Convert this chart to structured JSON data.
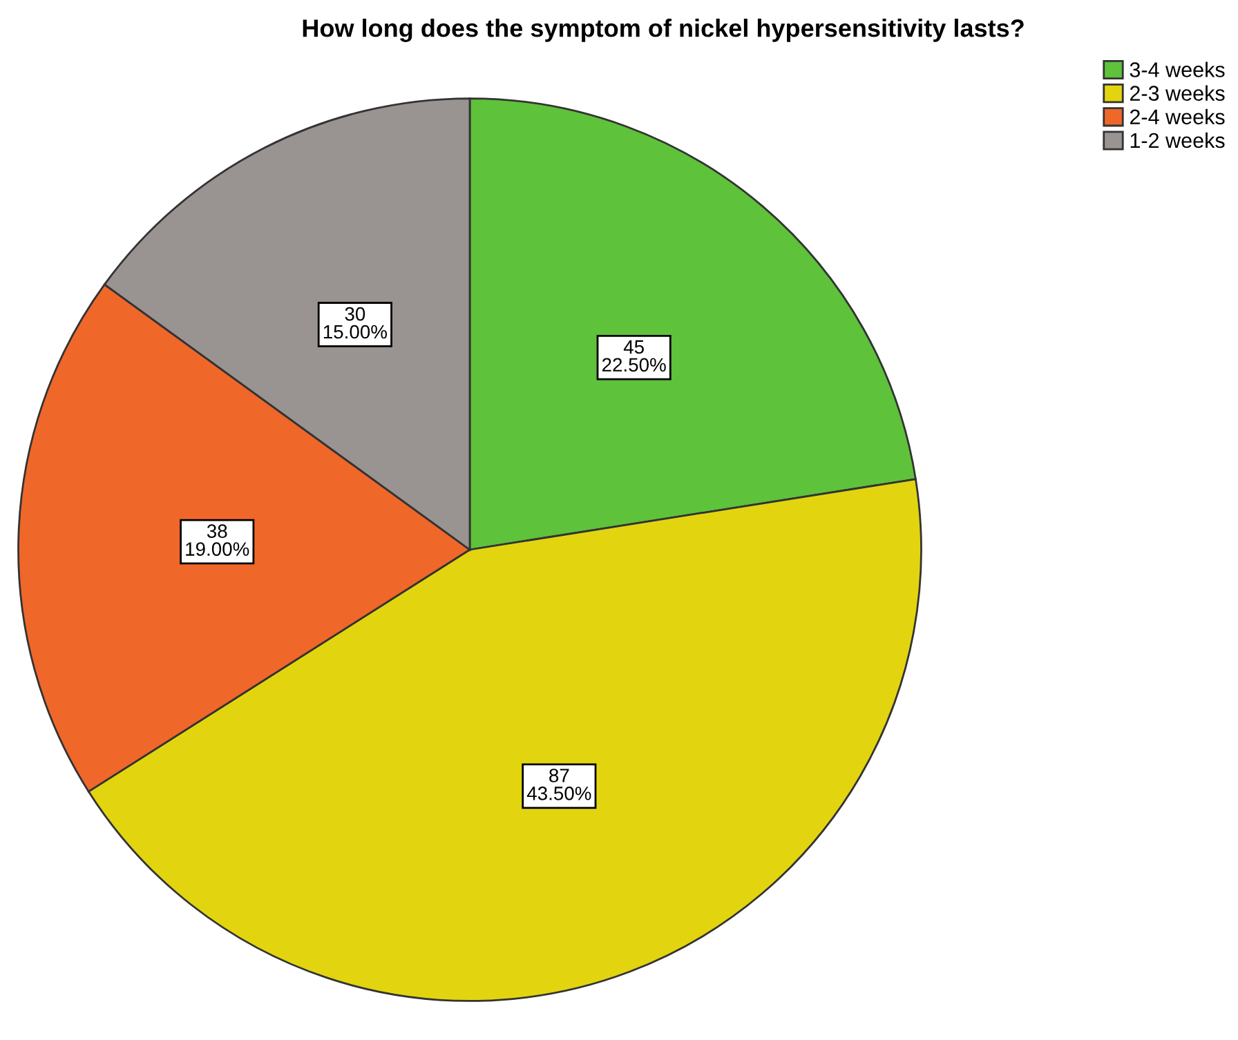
{
  "chart_data": {
    "type": "pie",
    "title": "How long does the symptom of nickel hypersensitivity lasts?",
    "categories": [
      "3-4 weeks",
      "2-3 weeks",
      "2-4 weeks",
      "1-2 weeks"
    ],
    "values": [
      45,
      87,
      38,
      30
    ],
    "colors": [
      "#5ec23b",
      "#e2d510",
      "#f0672a",
      "#999391"
    ],
    "value_labels": [
      "45\n22.50%",
      "87\n43.50%",
      "38\n19.00%",
      "30\n15.00%"
    ],
    "legend": "top right"
  }
}
